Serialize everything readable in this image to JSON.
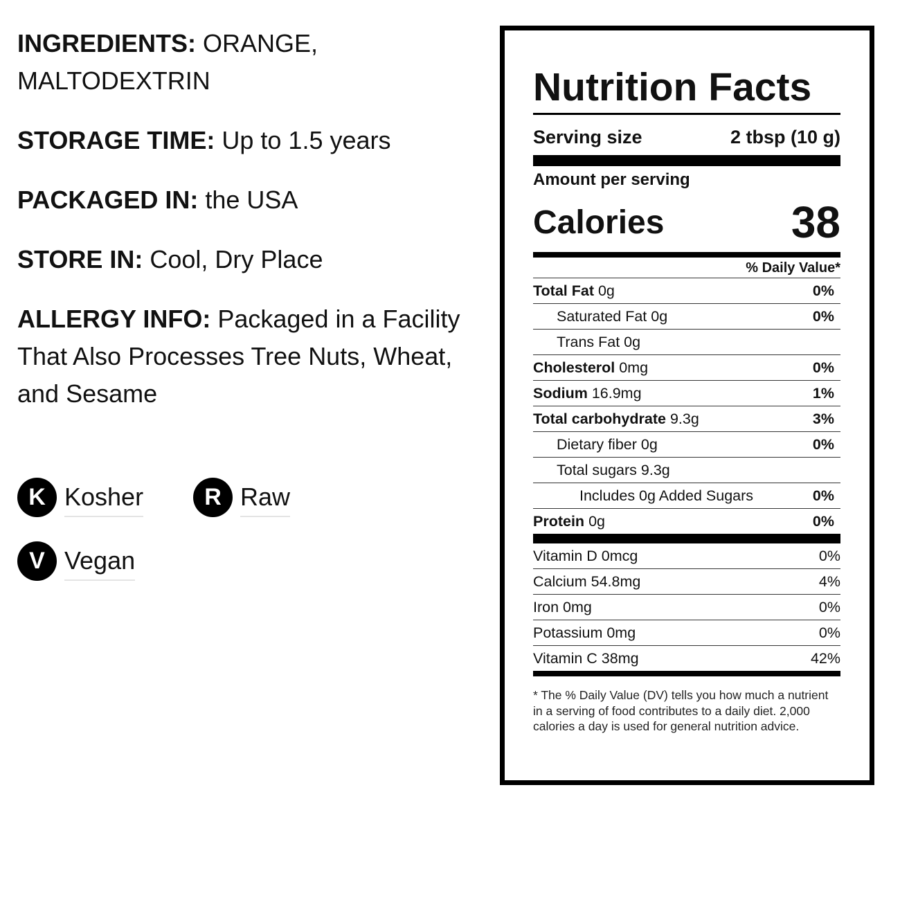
{
  "info": [
    {
      "label": "INGREDIENTS:",
      "text": "ORANGE, MALTODEXTRIN"
    },
    {
      "label": "STORAGE TIME:",
      "text": "Up to 1.5 years"
    },
    {
      "label": "PACKAGED IN:",
      "text": "the USA"
    },
    {
      "label": "STORE IN:",
      "text": "Cool, Dry Place"
    },
    {
      "label": "ALLERGY INFO:",
      "text": "Packaged in a Facility That Also Processes Tree Nuts, Wheat, and Sesame"
    }
  ],
  "badges": [
    {
      "icon": "K",
      "label": "Kosher"
    },
    {
      "icon": "R",
      "label": "Raw"
    },
    {
      "icon": "V",
      "label": "Vegan"
    }
  ],
  "nutrition": {
    "title": "Nutrition Facts",
    "serving_label": "Serving size",
    "serving_value": "2 tbsp (10 g)",
    "amount_per_serving": "Amount per serving",
    "calories_label": "Calories",
    "calories_value": "38",
    "dv_header": "% Daily Value*",
    "rows": [
      {
        "name": "Total Fat",
        "amount": "0g",
        "dv": "0%"
      },
      {
        "name": "Saturated Fat 0g",
        "dv": "0%"
      },
      {
        "name": "Trans Fat 0g"
      },
      {
        "name": "Cholesterol",
        "amount": "0mg",
        "dv": "0%"
      },
      {
        "name": "Sodium",
        "amount": "16.9mg",
        "dv": "1%"
      },
      {
        "name": "Total carbohydrate",
        "amount": "9.3g",
        "dv": "3%"
      },
      {
        "name": "Dietary fiber 0g",
        "dv": "0%"
      },
      {
        "name": "Total sugars 9.3g"
      },
      {
        "name": "Includes 0g Added Sugars",
        "dv": "0%"
      },
      {
        "name": "Protein",
        "amount": "0g",
        "dv": "0%"
      }
    ],
    "vitamins": [
      {
        "name": "Vitamin D 0mcg",
        "dv": "0%"
      },
      {
        "name": "Calcium 54.8mg",
        "dv": "4%"
      },
      {
        "name": "Iron 0mg",
        "dv": "0%"
      },
      {
        "name": "Potassium 0mg",
        "dv": "0%"
      },
      {
        "name": "Vitamin C 38mg",
        "dv": "42%"
      }
    ],
    "footnote": "* The % Daily Value (DV) tells you how much a nutrient in a serving of food contributes to a daily diet. 2,000 calories a day is used for general nutrition advice."
  }
}
